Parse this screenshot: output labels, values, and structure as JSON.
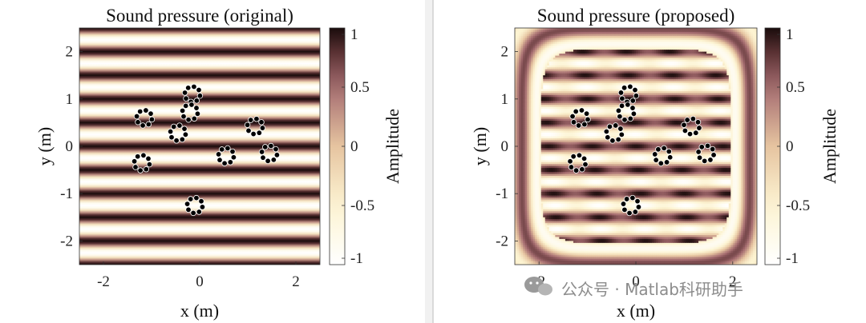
{
  "chart_data": [
    {
      "type": "heatmap",
      "title": "Sound pressure (original)",
      "xlabel": "x (m)",
      "ylabel": "y (m)",
      "xlim": [
        -2.5,
        2.5
      ],
      "ylim": [
        -2.5,
        2.5
      ],
      "xticks": [
        "-2",
        "0",
        "2"
      ],
      "yticks": [
        "2",
        "1",
        "0",
        "-1",
        "-2"
      ],
      "colorbar": {
        "label": "Amplitude",
        "range": [
          -1,
          1
        ],
        "ticks": [
          "1",
          "0.5",
          "0",
          "-0.5",
          "-1"
        ]
      },
      "field": "plane wave along y",
      "scatterers": [
        {
          "x": -1.15,
          "y": 0.6
        },
        {
          "x": -0.15,
          "y": 1.1
        },
        {
          "x": -0.2,
          "y": 0.72
        },
        {
          "x": -0.45,
          "y": 0.28
        },
        {
          "x": 1.15,
          "y": 0.42
        },
        {
          "x": 0.55,
          "y": -0.2
        },
        {
          "x": 1.45,
          "y": -0.15
        },
        {
          "x": -1.2,
          "y": -0.35
        },
        {
          "x": -0.1,
          "y": -1.25
        }
      ]
    },
    {
      "type": "heatmap",
      "title": "Sound pressure (proposed)",
      "xlabel": "x (m)",
      "ylabel": "y (m)",
      "xlim": [
        -2.5,
        2.5
      ],
      "ylim": [
        -2.5,
        2.5
      ],
      "xticks": [
        "-2",
        "0",
        "2"
      ],
      "yticks": [
        "2",
        "1",
        "0",
        "-1",
        "-2"
      ],
      "colorbar": {
        "label": "Amplitude",
        "range": [
          -1,
          1
        ],
        "ticks": [
          "1",
          "0.5",
          "0",
          "-0.5",
          "-1"
        ]
      },
      "field": "localized wave field with rounded boundary",
      "scatterers": [
        {
          "x": -1.15,
          "y": 0.6
        },
        {
          "x": -0.15,
          "y": 1.1
        },
        {
          "x": -0.2,
          "y": 0.72
        },
        {
          "x": -0.45,
          "y": 0.28
        },
        {
          "x": 1.15,
          "y": 0.42
        },
        {
          "x": 0.55,
          "y": -0.2
        },
        {
          "x": 1.45,
          "y": -0.15
        },
        {
          "x": -1.2,
          "y": -0.35
        },
        {
          "x": -0.1,
          "y": -1.25
        }
      ]
    }
  ],
  "watermark": "公众号 · Matlab科研助手",
  "colors": {
    "max": "#1a0c0c",
    "mid": "#fdf7d3",
    "min": "#ffffff"
  }
}
